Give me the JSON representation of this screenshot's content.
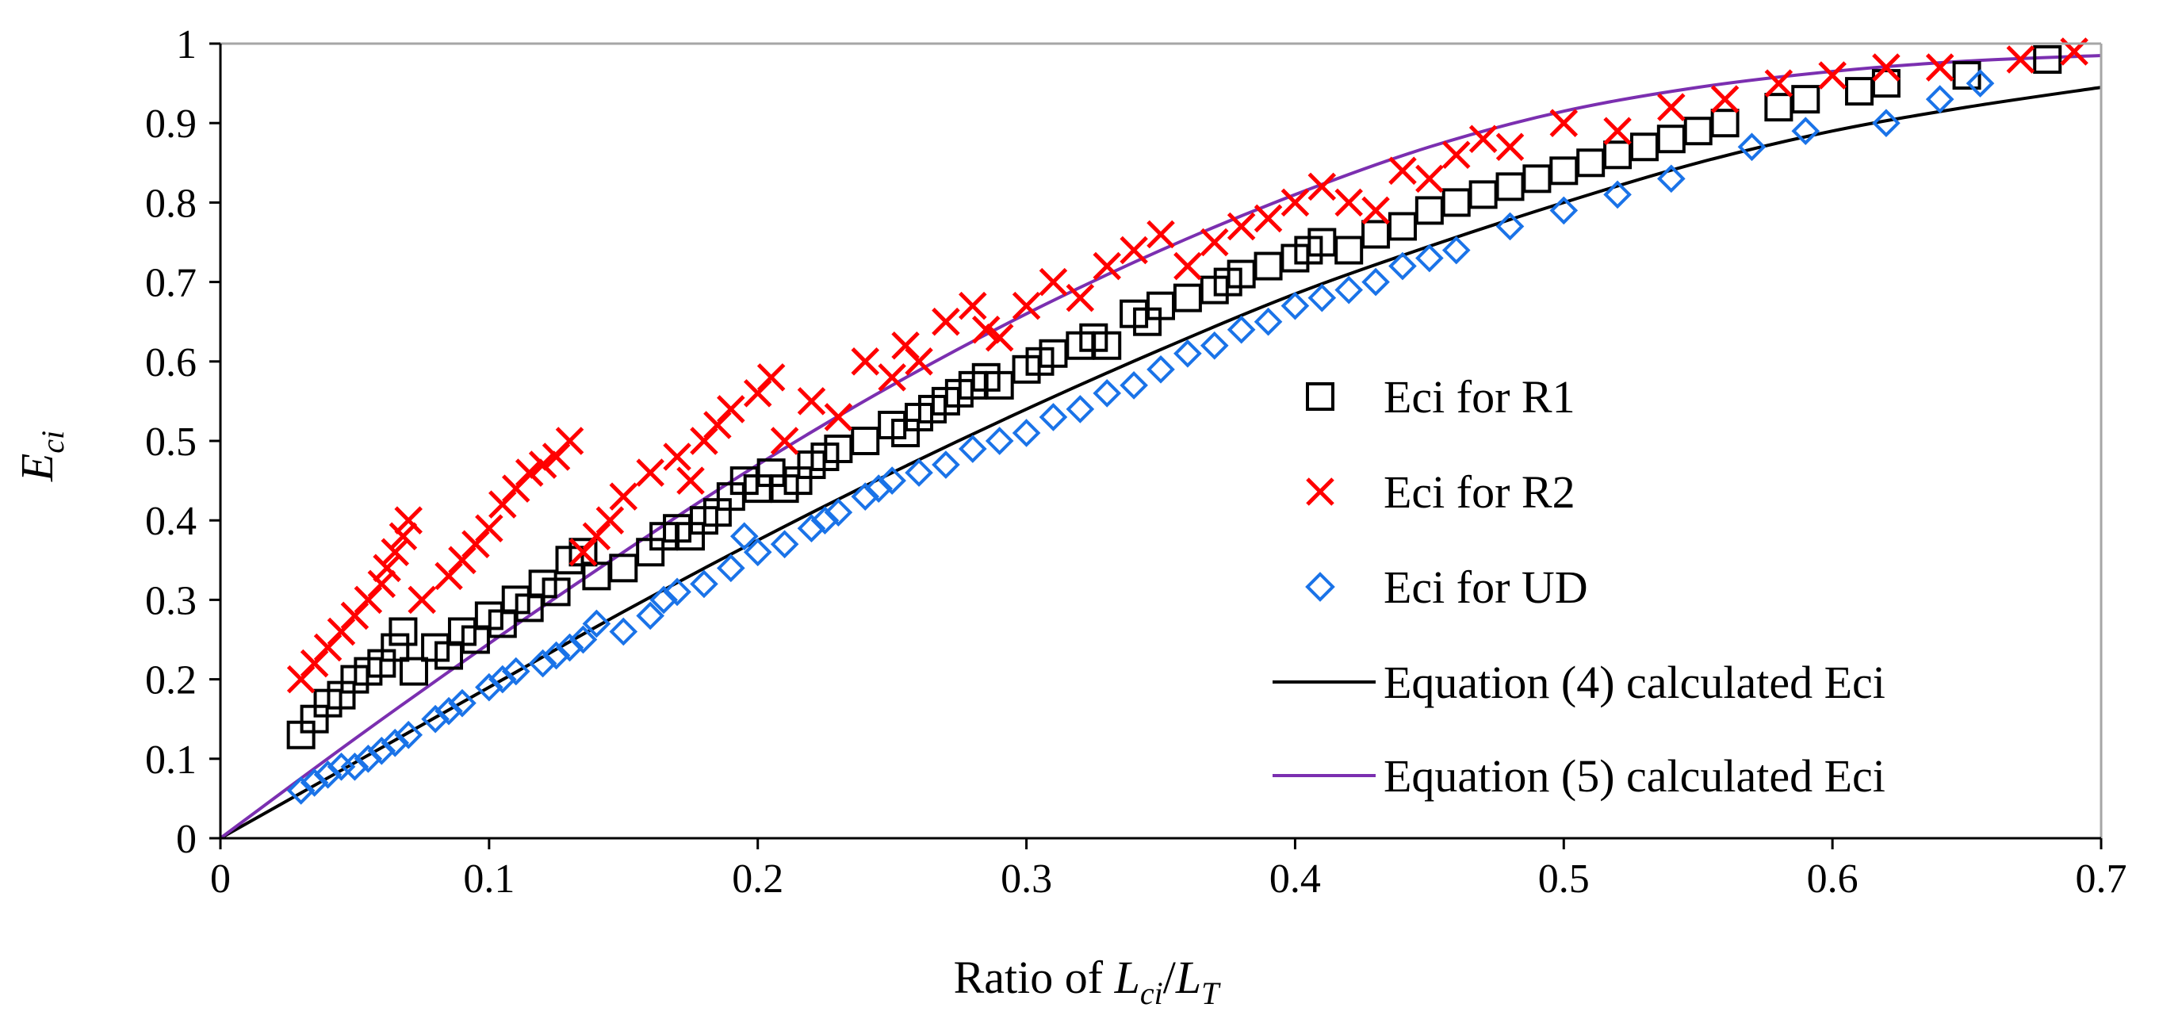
{
  "chart_data": {
    "type": "scatter",
    "title": "",
    "xlabel": {
      "prefix": "Ratio of ",
      "num_main": "L",
      "num_sub": "ci",
      "slash": "/",
      "den_main": "L",
      "den_sub": "T"
    },
    "ylabel": {
      "main": "E",
      "sub": "ci"
    },
    "xlim": [
      0,
      0.7
    ],
    "ylim": [
      0,
      1
    ],
    "xticks": [
      {
        "value": 0,
        "label": "0"
      },
      {
        "value": 0.1,
        "label": "0.1"
      },
      {
        "value": 0.2,
        "label": "0.2"
      },
      {
        "value": 0.3,
        "label": "0.3"
      },
      {
        "value": 0.4,
        "label": "0.4"
      },
      {
        "value": 0.5,
        "label": "0.5"
      },
      {
        "value": 0.6,
        "label": "0.6"
      },
      {
        "value": 0.7,
        "label": "0.7"
      }
    ],
    "yticks": [
      {
        "value": 0,
        "label": "0"
      },
      {
        "value": 0.1,
        "label": "0.1"
      },
      {
        "value": 0.2,
        "label": "0.2"
      },
      {
        "value": 0.3,
        "label": "0.3"
      },
      {
        "value": 0.4,
        "label": "0.4"
      },
      {
        "value": 0.5,
        "label": "0.5"
      },
      {
        "value": 0.6,
        "label": "0.6"
      },
      {
        "value": 0.7,
        "label": "0.7"
      },
      {
        "value": 0.8,
        "label": "0.8"
      },
      {
        "value": 0.9,
        "label": "0.9"
      },
      {
        "value": 1,
        "label": "1"
      }
    ],
    "grid": false,
    "legend_position": "center-right",
    "series": [
      {
        "name": "Eci for R1",
        "marker": "square",
        "color": "#000000",
        "x": [
          0.03,
          0.035,
          0.04,
          0.045,
          0.05,
          0.055,
          0.06,
          0.065,
          0.068,
          0.072,
          0.08,
          0.085,
          0.09,
          0.095,
          0.1,
          0.105,
          0.11,
          0.115,
          0.12,
          0.125,
          0.13,
          0.135,
          0.14,
          0.15,
          0.16,
          0.165,
          0.17,
          0.175,
          0.18,
          0.185,
          0.19,
          0.195,
          0.2,
          0.205,
          0.21,
          0.215,
          0.22,
          0.225,
          0.23,
          0.24,
          0.25,
          0.255,
          0.26,
          0.265,
          0.27,
          0.275,
          0.28,
          0.285,
          0.29,
          0.3,
          0.305,
          0.31,
          0.32,
          0.325,
          0.33,
          0.34,
          0.345,
          0.35,
          0.36,
          0.37,
          0.375,
          0.38,
          0.39,
          0.4,
          0.405,
          0.41,
          0.42,
          0.43,
          0.44,
          0.45,
          0.46,
          0.47,
          0.48,
          0.49,
          0.5,
          0.51,
          0.52,
          0.53,
          0.54,
          0.55,
          0.56,
          0.58,
          0.59,
          0.61,
          0.62,
          0.65,
          0.68
        ],
        "y": [
          0.13,
          0.15,
          0.17,
          0.18,
          0.2,
          0.21,
          0.22,
          0.24,
          0.26,
          0.21,
          0.24,
          0.23,
          0.26,
          0.25,
          0.28,
          0.27,
          0.3,
          0.29,
          0.32,
          0.31,
          0.35,
          0.36,
          0.33,
          0.34,
          0.36,
          0.38,
          0.39,
          0.38,
          0.4,
          0.41,
          0.43,
          0.45,
          0.44,
          0.46,
          0.44,
          0.45,
          0.47,
          0.48,
          0.49,
          0.5,
          0.52,
          0.51,
          0.53,
          0.54,
          0.55,
          0.56,
          0.57,
          0.58,
          0.57,
          0.59,
          0.6,
          0.61,
          0.62,
          0.63,
          0.62,
          0.66,
          0.65,
          0.67,
          0.68,
          0.69,
          0.7,
          0.71,
          0.72,
          0.73,
          0.74,
          0.75,
          0.74,
          0.76,
          0.77,
          0.79,
          0.8,
          0.81,
          0.82,
          0.83,
          0.84,
          0.85,
          0.86,
          0.87,
          0.88,
          0.89,
          0.9,
          0.92,
          0.93,
          0.94,
          0.95,
          0.96,
          0.98
        ]
      },
      {
        "name": "Eci for R2",
        "marker": "x",
        "color": "#ff0000",
        "x": [
          0.03,
          0.035,
          0.04,
          0.045,
          0.05,
          0.055,
          0.06,
          0.062,
          0.065,
          0.068,
          0.07,
          0.075,
          0.085,
          0.09,
          0.095,
          0.1,
          0.105,
          0.11,
          0.115,
          0.12,
          0.125,
          0.13,
          0.135,
          0.14,
          0.145,
          0.15,
          0.16,
          0.17,
          0.175,
          0.18,
          0.185,
          0.19,
          0.2,
          0.205,
          0.21,
          0.22,
          0.23,
          0.24,
          0.25,
          0.255,
          0.26,
          0.27,
          0.28,
          0.285,
          0.29,
          0.3,
          0.31,
          0.32,
          0.33,
          0.34,
          0.35,
          0.36,
          0.37,
          0.38,
          0.39,
          0.4,
          0.41,
          0.42,
          0.43,
          0.44,
          0.45,
          0.46,
          0.47,
          0.48,
          0.5,
          0.52,
          0.54,
          0.56,
          0.58,
          0.6,
          0.62,
          0.64,
          0.67,
          0.69
        ],
        "y": [
          0.2,
          0.22,
          0.24,
          0.26,
          0.28,
          0.3,
          0.32,
          0.34,
          0.36,
          0.38,
          0.4,
          0.3,
          0.33,
          0.35,
          0.37,
          0.39,
          0.42,
          0.44,
          0.46,
          0.47,
          0.48,
          0.5,
          0.36,
          0.38,
          0.4,
          0.43,
          0.46,
          0.48,
          0.45,
          0.5,
          0.52,
          0.54,
          0.56,
          0.58,
          0.5,
          0.55,
          0.53,
          0.6,
          0.58,
          0.62,
          0.6,
          0.65,
          0.67,
          0.64,
          0.63,
          0.67,
          0.7,
          0.68,
          0.72,
          0.74,
          0.76,
          0.72,
          0.75,
          0.77,
          0.78,
          0.8,
          0.82,
          0.8,
          0.79,
          0.84,
          0.83,
          0.86,
          0.88,
          0.87,
          0.9,
          0.89,
          0.92,
          0.93,
          0.95,
          0.96,
          0.97,
          0.97,
          0.98,
          0.99
        ]
      },
      {
        "name": "Eci for UD",
        "marker": "diamond",
        "color": "#1a73e8",
        "x": [
          0.03,
          0.035,
          0.04,
          0.045,
          0.05,
          0.055,
          0.06,
          0.065,
          0.07,
          0.08,
          0.085,
          0.09,
          0.1,
          0.105,
          0.11,
          0.12,
          0.125,
          0.13,
          0.135,
          0.14,
          0.15,
          0.16,
          0.165,
          0.17,
          0.18,
          0.19,
          0.195,
          0.2,
          0.21,
          0.22,
          0.225,
          0.23,
          0.24,
          0.245,
          0.25,
          0.26,
          0.27,
          0.28,
          0.29,
          0.3,
          0.31,
          0.32,
          0.33,
          0.34,
          0.35,
          0.36,
          0.37,
          0.38,
          0.39,
          0.4,
          0.41,
          0.42,
          0.43,
          0.44,
          0.45,
          0.46,
          0.48,
          0.5,
          0.52,
          0.54,
          0.57,
          0.59,
          0.62,
          0.64,
          0.655
        ],
        "y": [
          0.06,
          0.07,
          0.08,
          0.09,
          0.09,
          0.1,
          0.11,
          0.12,
          0.13,
          0.15,
          0.16,
          0.17,
          0.19,
          0.2,
          0.21,
          0.22,
          0.23,
          0.24,
          0.25,
          0.27,
          0.26,
          0.28,
          0.3,
          0.31,
          0.32,
          0.34,
          0.38,
          0.36,
          0.37,
          0.39,
          0.4,
          0.41,
          0.43,
          0.44,
          0.45,
          0.46,
          0.47,
          0.49,
          0.5,
          0.51,
          0.53,
          0.54,
          0.56,
          0.57,
          0.59,
          0.61,
          0.62,
          0.64,
          0.65,
          0.67,
          0.68,
          0.69,
          0.7,
          0.72,
          0.73,
          0.74,
          0.77,
          0.79,
          0.81,
          0.83,
          0.87,
          0.89,
          0.9,
          0.93,
          0.95
        ]
      },
      {
        "name": "Equation (4) calculated Eci",
        "marker": "line",
        "color": "#000000",
        "x": [
          0,
          0.05,
          0.1,
          0.15,
          0.2,
          0.25,
          0.3,
          0.35,
          0.4,
          0.45,
          0.5,
          0.55,
          0.6,
          0.65,
          0.7
        ],
        "y": [
          0,
          0.095,
          0.19,
          0.285,
          0.375,
          0.46,
          0.54,
          0.615,
          0.685,
          0.745,
          0.8,
          0.85,
          0.89,
          0.92,
          0.945
        ]
      },
      {
        "name": "Equation (5) calculated Eci",
        "marker": "line",
        "color": "#7b2fb0",
        "x": [
          0,
          0.05,
          0.1,
          0.15,
          0.2,
          0.25,
          0.3,
          0.35,
          0.4,
          0.45,
          0.5,
          0.55,
          0.6,
          0.65,
          0.7
        ],
        "y": [
          0,
          0.125,
          0.245,
          0.36,
          0.47,
          0.57,
          0.66,
          0.74,
          0.81,
          0.87,
          0.915,
          0.945,
          0.965,
          0.978,
          0.985
        ]
      }
    ]
  }
}
